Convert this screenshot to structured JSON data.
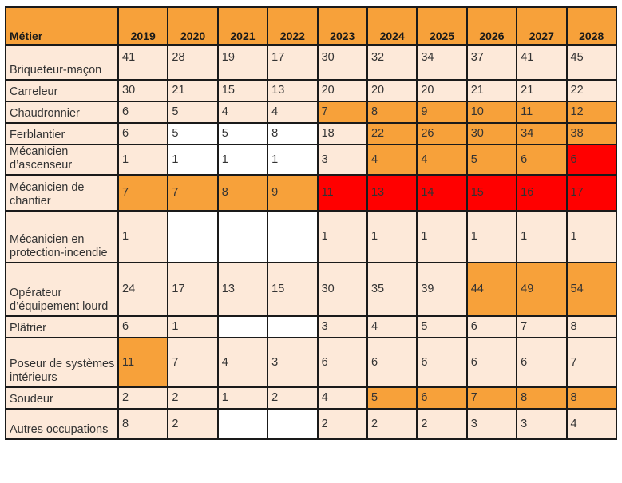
{
  "table": {
    "header": [
      "Métier",
      "2019",
      "2020",
      "2021",
      "2022",
      "2023",
      "2024",
      "2025",
      "2026",
      "2027",
      "2028"
    ],
    "rows": [
      {
        "label": "Briqueteur-maçon",
        "values": [
          "41",
          "28",
          "19",
          "17",
          "30",
          "32",
          "34",
          "37",
          "41",
          "45"
        ]
      },
      {
        "label": "Carreleur",
        "values": [
          "30",
          "21",
          "15",
          "13",
          "20",
          "20",
          "20",
          "21",
          "21",
          "22"
        ]
      },
      {
        "label": "Chaudronnier",
        "values": [
          "6",
          "5",
          "4",
          "4",
          "7",
          "8",
          "9",
          "10",
          "11",
          "12"
        ]
      },
      {
        "label": "Ferblantier",
        "values": [
          "6",
          "5",
          "5",
          "8",
          "18",
          "22",
          "26",
          "30",
          "34",
          "38"
        ]
      },
      {
        "label": "Mécanicien d’ascenseur",
        "values": [
          "1",
          "1",
          "1",
          "1",
          "3",
          "4",
          "4",
          "5",
          "6",
          "6"
        ]
      },
      {
        "label": "Mécanicien de chantier",
        "values": [
          "7",
          "7",
          "8",
          "9",
          "11",
          "13",
          "14",
          "15",
          "16",
          "17"
        ]
      },
      {
        "label": "Mécanicien en protection-incendie",
        "values": [
          "1",
          "",
          "",
          "",
          "1",
          "1",
          "1",
          "1",
          "1",
          "1"
        ]
      },
      {
        "label": "Opérateur d’équipement lourd",
        "values": [
          "24",
          "17",
          "13",
          "15",
          "30",
          "35",
          "39",
          "44",
          "49",
          "54"
        ]
      },
      {
        "label": "Plâtrier",
        "values": [
          "6",
          "1",
          "",
          "",
          "3",
          "4",
          "5",
          "6",
          "7",
          "8"
        ]
      },
      {
        "label": "Poseur de systèmes intérieurs",
        "values": [
          "11",
          "7",
          "4",
          "3",
          "6",
          "6",
          "6",
          "6",
          "6",
          "7"
        ]
      },
      {
        "label": "Soudeur",
        "values": [
          "2",
          "2",
          "1",
          "2",
          "4",
          "5",
          "6",
          "7",
          "8",
          "8"
        ]
      },
      {
        "label": "Autres occupations",
        "values": [
          "8",
          "2",
          "",
          "",
          "2",
          "2",
          "2",
          "3",
          "3",
          "4"
        ]
      }
    ],
    "colors": {
      "light": "#fde9d9",
      "white": "#ffffff",
      "orange": "#f7a13a",
      "red": "#ff0000"
    }
  }
}
